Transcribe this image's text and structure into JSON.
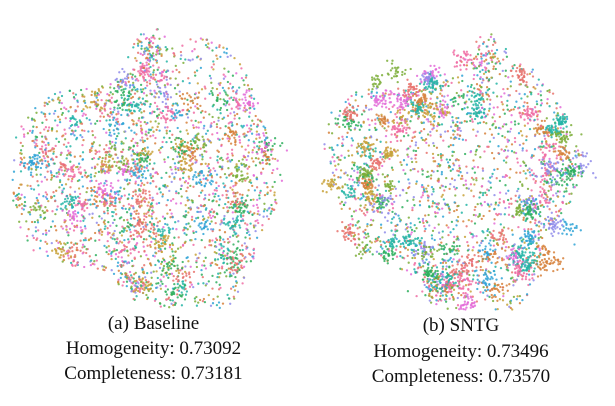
{
  "chart_data": [
    {
      "type": "scatter",
      "caption": "(a) Baseline",
      "homogeneity": "Homogeneity: 0.73092",
      "completeness": "Completeness: 0.73181",
      "xlabel": "",
      "ylabel": "",
      "grid": false,
      "legend": "none",
      "colors": [
        "#E8736D",
        "#C8A23A",
        "#7DAE3A",
        "#2FAF5E",
        "#25B5A6",
        "#2FA3D6",
        "#8F8BEA",
        "#E36BD8",
        "#F06DA4",
        "#D6803A"
      ]
    },
    {
      "type": "scatter",
      "caption": "(b) SNTG",
      "homogeneity": "Homogeneity: 0.73496",
      "completeness": "Completeness: 0.73570",
      "xlabel": "",
      "ylabel": "",
      "grid": false,
      "legend": "none",
      "colors": [
        "#E8736D",
        "#C8A23A",
        "#7DAE3A",
        "#2FAF5E",
        "#25B5A6",
        "#2FA3D6",
        "#8F8BEA",
        "#E36BD8",
        "#F06DA4",
        "#D6803A"
      ]
    }
  ]
}
